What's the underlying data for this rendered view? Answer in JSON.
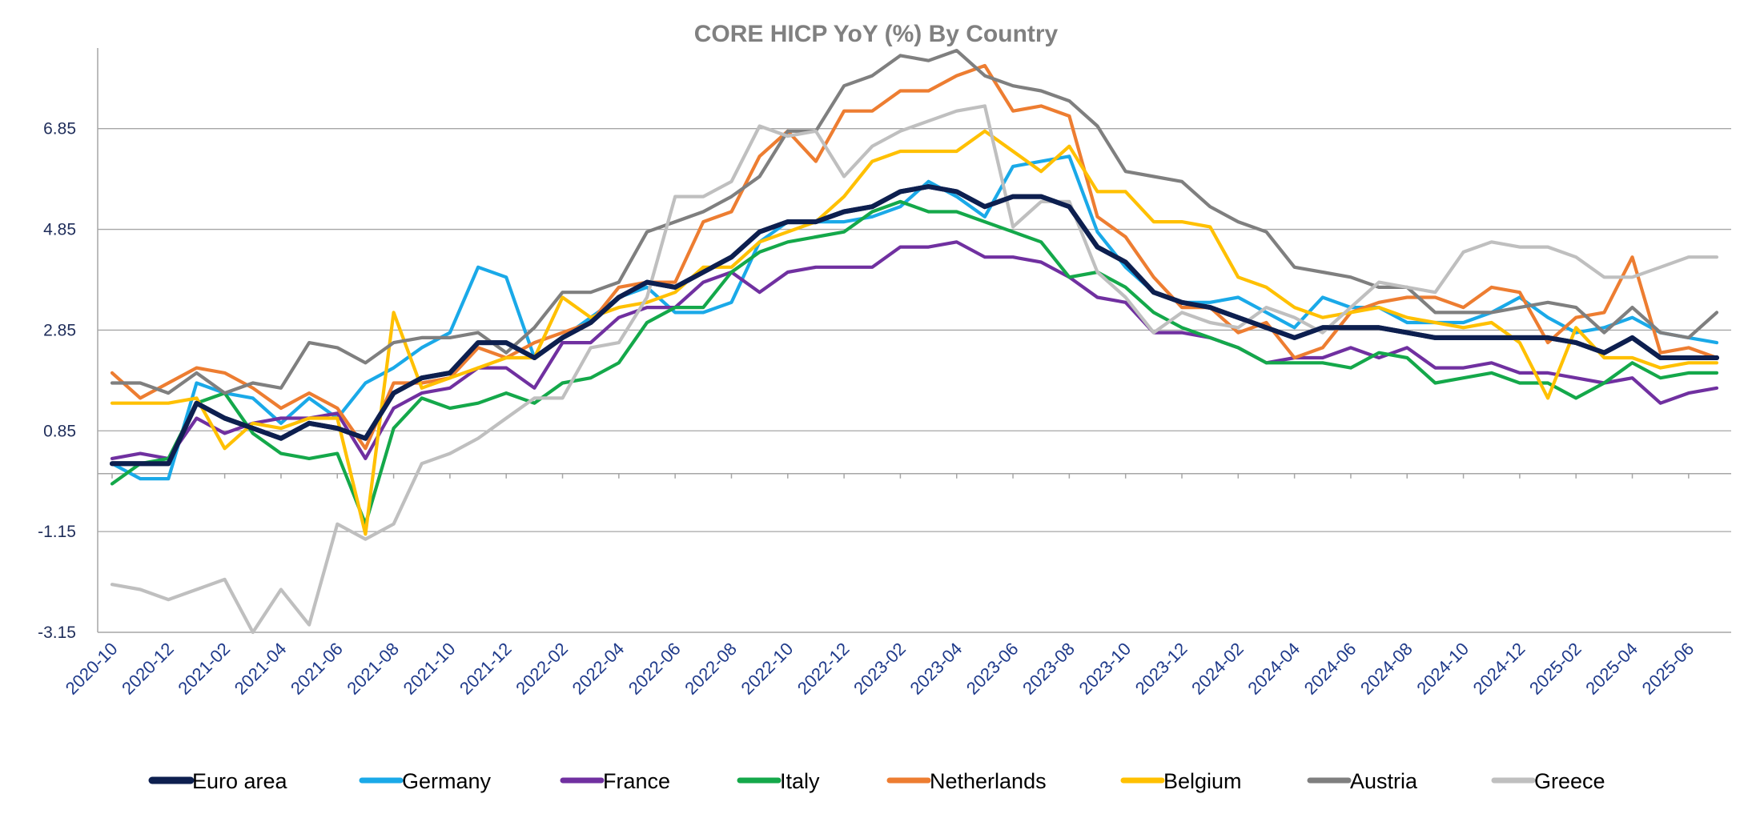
{
  "chart_data": {
    "type": "line",
    "title": "CORE HICP YoY (%) By Country",
    "xlabel": "",
    "ylabel": "",
    "ylim": [
      -3.15,
      8.45
    ],
    "yticks": [
      -3.15,
      -1.15,
      0.85,
      2.85,
      4.85,
      6.85
    ],
    "ytick_labels": [
      "-3.15",
      "-1.15",
      "0.85",
      "2.85",
      "4.85",
      "6.85"
    ],
    "grid": true,
    "legend_position": "bottom",
    "x": [
      "2020-10",
      "2020-11",
      "2020-12",
      "2021-01",
      "2021-02",
      "2021-03",
      "2021-04",
      "2021-05",
      "2021-06",
      "2021-07",
      "2021-08",
      "2021-09",
      "2021-10",
      "2021-11",
      "2021-12",
      "2022-01",
      "2022-02",
      "2022-03",
      "2022-04",
      "2022-05",
      "2022-06",
      "2022-07",
      "2022-08",
      "2022-09",
      "2022-10",
      "2022-11",
      "2022-12",
      "2023-01",
      "2023-02",
      "2023-03",
      "2023-04",
      "2023-05",
      "2023-06",
      "2023-07",
      "2023-08",
      "2023-09",
      "2023-10",
      "2023-11",
      "2023-12",
      "2024-01",
      "2024-02",
      "2024-03",
      "2024-04",
      "2024-05",
      "2024-06",
      "2024-07",
      "2024-08",
      "2024-09",
      "2024-10",
      "2024-11",
      "2024-12",
      "2025-01",
      "2025-02",
      "2025-03",
      "2025-04",
      "2025-05",
      "2025-06",
      "2025-07"
    ],
    "x_tick_labels": [
      "2020-10",
      "2020-12",
      "2021-02",
      "2021-04",
      "2021-06",
      "2021-08",
      "2021-10",
      "2021-12",
      "2022-02",
      "2022-04",
      "2022-06",
      "2022-08",
      "2022-10",
      "2022-12",
      "2023-02",
      "2023-04",
      "2023-06",
      "2023-08",
      "2023-10",
      "2023-12",
      "2024-02",
      "2024-04",
      "2024-06",
      "2024-08",
      "2024-10",
      "2024-12",
      "2025-02",
      "2025-04",
      "2025-06"
    ],
    "series": [
      {
        "name": "Euro area",
        "color": "#0d1f4f",
        "values": [
          0.2,
          0.2,
          0.2,
          1.4,
          1.1,
          0.9,
          0.7,
          1.0,
          0.9,
          0.7,
          1.6,
          1.9,
          2.0,
          2.6,
          2.6,
          2.3,
          2.7,
          3.0,
          3.5,
          3.8,
          3.7,
          4.0,
          4.3,
          4.8,
          5.0,
          5.0,
          5.2,
          5.3,
          5.6,
          5.7,
          5.6,
          5.3,
          5.5,
          5.5,
          5.3,
          4.5,
          4.2,
          3.6,
          3.4,
          3.3,
          3.1,
          2.9,
          2.7,
          2.9,
          2.9,
          2.9,
          2.8,
          2.7,
          2.7,
          2.7,
          2.7,
          2.7,
          2.6,
          2.4,
          2.7,
          2.3,
          2.3,
          2.3
        ]
      },
      {
        "name": "Germany",
        "color": "#1aa9e8",
        "values": [
          0.2,
          -0.1,
          -0.1,
          1.8,
          1.6,
          1.5,
          1.0,
          1.5,
          1.1,
          1.8,
          2.1,
          2.5,
          2.8,
          4.1,
          3.9,
          2.3,
          2.7,
          3.1,
          3.5,
          3.7,
          3.2,
          3.2,
          3.4,
          4.6,
          5.0,
          5.0,
          5.0,
          5.1,
          5.3,
          5.8,
          5.5,
          5.1,
          6.1,
          6.2,
          6.3,
          4.8,
          4.1,
          3.6,
          3.4,
          3.4,
          3.5,
          3.2,
          2.9,
          3.5,
          3.3,
          3.3,
          3.0,
          3.0,
          3.0,
          3.2,
          3.5,
          3.1,
          2.8,
          2.9,
          3.1,
          2.8,
          2.7,
          2.6
        ]
      },
      {
        "name": "France",
        "color": "#7030a0",
        "values": [
          0.3,
          0.4,
          0.3,
          1.1,
          0.8,
          1.0,
          1.1,
          1.1,
          1.2,
          0.3,
          1.3,
          1.6,
          1.7,
          2.1,
          2.1,
          1.7,
          2.6,
          2.6,
          3.1,
          3.3,
          3.3,
          3.8,
          4.0,
          3.6,
          4.0,
          4.1,
          4.1,
          4.1,
          4.5,
          4.5,
          4.6,
          4.3,
          4.3,
          4.2,
          3.9,
          3.5,
          3.4,
          2.8,
          2.8,
          2.7,
          2.5,
          2.2,
          2.3,
          2.3,
          2.5,
          2.3,
          2.5,
          2.1,
          2.1,
          2.2,
          2.0,
          2.0,
          1.9,
          1.8,
          1.9,
          1.4,
          1.6,
          1.7
        ]
      },
      {
        "name": "Italy",
        "color": "#14a84a",
        "values": [
          -0.2,
          0.2,
          0.3,
          1.4,
          1.6,
          0.8,
          0.4,
          0.3,
          0.4,
          -1.0,
          0.9,
          1.5,
          1.3,
          1.4,
          1.6,
          1.4,
          1.8,
          1.9,
          2.2,
          3.0,
          3.3,
          3.3,
          4.0,
          4.4,
          4.6,
          4.7,
          4.8,
          5.2,
          5.4,
          5.2,
          5.2,
          5.0,
          4.8,
          4.6,
          3.9,
          4.0,
          3.7,
          3.2,
          2.9,
          2.7,
          2.5,
          2.2,
          2.2,
          2.2,
          2.1,
          2.4,
          2.3,
          1.8,
          1.9,
          2.0,
          1.8,
          1.8,
          1.5,
          1.8,
          2.2,
          1.9,
          2.0,
          2.0
        ]
      },
      {
        "name": "Netherlands",
        "color": "#ed7d31",
        "values": [
          2.0,
          1.5,
          1.8,
          2.1,
          2.0,
          1.7,
          1.3,
          1.6,
          1.3,
          0.5,
          1.8,
          1.8,
          1.9,
          2.5,
          2.3,
          2.6,
          2.8,
          3.0,
          3.7,
          3.8,
          3.8,
          5.0,
          5.2,
          6.3,
          6.8,
          6.2,
          7.2,
          7.2,
          7.6,
          7.6,
          7.9,
          8.1,
          7.2,
          7.3,
          7.1,
          5.1,
          4.7,
          3.9,
          3.3,
          3.3,
          2.8,
          3.0,
          2.3,
          2.5,
          3.2,
          3.4,
          3.5,
          3.5,
          3.3,
          3.7,
          3.6,
          2.6,
          3.1,
          3.2,
          4.3,
          2.4,
          2.5,
          2.3
        ]
      },
      {
        "name": "Belgium",
        "color": "#ffc000",
        "values": [
          1.4,
          1.4,
          1.4,
          1.5,
          0.5,
          1.0,
          0.9,
          1.1,
          1.1,
          -1.2,
          3.2,
          1.7,
          1.9,
          2.1,
          2.3,
          2.3,
          3.5,
          3.1,
          3.3,
          3.4,
          3.6,
          4.1,
          4.1,
          4.6,
          4.8,
          5.0,
          5.5,
          6.2,
          6.4,
          6.4,
          6.4,
          6.8,
          6.4,
          6.0,
          6.5,
          5.6,
          5.6,
          5.0,
          5.0,
          4.9,
          3.9,
          3.7,
          3.3,
          3.1,
          3.2,
          3.3,
          3.1,
          3.0,
          2.9,
          3.0,
          2.6,
          1.5,
          2.9,
          2.3,
          2.3,
          2.1,
          2.2,
          2.2
        ]
      },
      {
        "name": "Austria",
        "color": "#7f7f7f",
        "values": [
          1.8,
          1.8,
          1.6,
          2.0,
          1.6,
          1.8,
          1.7,
          2.6,
          2.5,
          2.2,
          2.6,
          2.7,
          2.7,
          2.8,
          2.4,
          2.9,
          3.6,
          3.6,
          3.8,
          4.8,
          5.0,
          5.2,
          5.5,
          5.9,
          6.8,
          6.8,
          7.7,
          7.9,
          8.3,
          8.2,
          8.4,
          7.9,
          7.7,
          7.6,
          7.4,
          6.9,
          6.0,
          5.9,
          5.8,
          5.3,
          5.0,
          4.8,
          4.1,
          4.0,
          3.9,
          3.7,
          3.7,
          3.2,
          3.2,
          3.2,
          3.3,
          3.4,
          3.3,
          2.8,
          3.3,
          2.8,
          2.7,
          3.2
        ]
      },
      {
        "name": "Greece",
        "color": "#bfbfbf",
        "values": [
          -2.2,
          -2.3,
          -2.5,
          -2.3,
          -2.1,
          -3.15,
          -2.3,
          -3.0,
          -1.0,
          -1.3,
          -1.0,
          0.2,
          0.4,
          0.7,
          1.1,
          1.5,
          1.5,
          2.5,
          2.6,
          3.5,
          5.5,
          5.5,
          5.8,
          6.9,
          6.7,
          6.8,
          5.9,
          6.5,
          6.8,
          7.0,
          7.2,
          7.3,
          4.9,
          5.4,
          5.4,
          4.0,
          3.5,
          2.8,
          3.2,
          3.0,
          2.9,
          3.3,
          3.1,
          2.8,
          3.3,
          3.8,
          3.7,
          3.6,
          4.4,
          4.6,
          4.5,
          4.5,
          4.3,
          3.9,
          3.9,
          4.1,
          4.3,
          4.3
        ]
      }
    ]
  }
}
